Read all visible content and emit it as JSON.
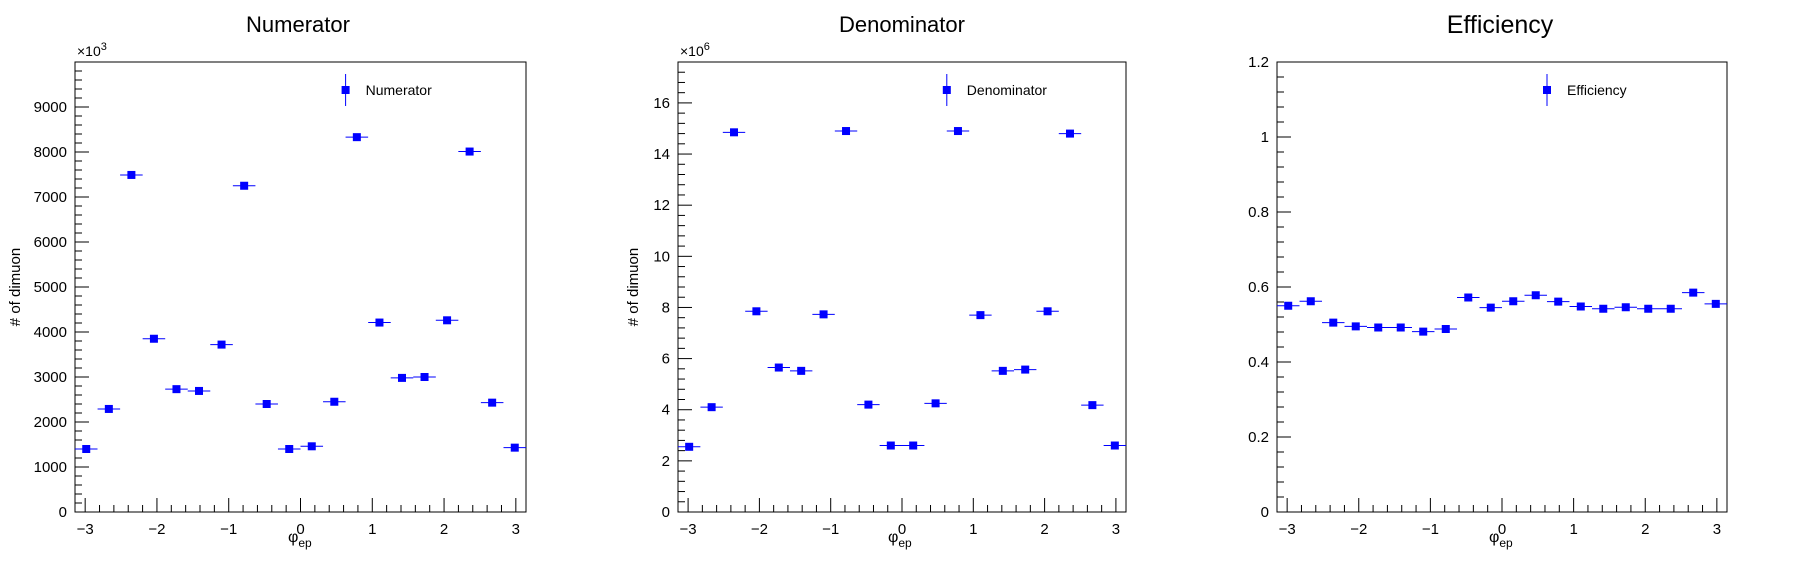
{
  "chart_data": [
    {
      "type": "scatter",
      "title": "Numerator",
      "ylabel": "# of dimuon",
      "xlabel_symbol": "φ",
      "xlabel_sub": "ep",
      "xlim": [
        -3.14159,
        3.14159
      ],
      "ylim": [
        0,
        10000
      ],
      "multiplier_base": "×10",
      "multiplier_exp": "3",
      "yticks": [
        0,
        1000,
        2000,
        3000,
        4000,
        5000,
        6000,
        7000,
        8000,
        9000
      ],
      "ytick_labels": [
        "0",
        "1000",
        "2000",
        "3000",
        "4000",
        "5000",
        "6000",
        "7000",
        "8000",
        "9000"
      ],
      "xticks": [
        -3,
        -2,
        -1,
        0,
        1,
        2,
        3
      ],
      "xtick_labels": [
        "−3",
        "−2",
        "−1",
        "0",
        "1",
        "2",
        "3"
      ],
      "legend": "Numerator",
      "legend_position": "top-right",
      "marker_color": "#0000ff",
      "x": [
        -2.985,
        -2.67,
        -2.356,
        -2.042,
        -1.728,
        -1.414,
        -1.1,
        -0.785,
        -0.471,
        -0.157,
        0.157,
        0.471,
        0.785,
        1.1,
        1.414,
        1.728,
        2.042,
        2.356,
        2.67,
        2.985
      ],
      "values": [
        1400,
        2290,
        7490,
        3850,
        2730,
        2690,
        3720,
        7250,
        2400,
        1400,
        1460,
        2450,
        8330,
        4210,
        2980,
        3000,
        4260,
        8010,
        2430,
        1430
      ]
    },
    {
      "type": "scatter",
      "title": "Denominator",
      "ylabel": "# of dimuon",
      "xlabel_symbol": "φ",
      "xlabel_sub": "ep",
      "xlim": [
        -3.14159,
        3.14159
      ],
      "ylim": [
        0,
        17600000
      ],
      "multiplier_base": "×10",
      "multiplier_exp": "6",
      "yticks": [
        0,
        2000000,
        4000000,
        6000000,
        8000000,
        10000000,
        12000000,
        14000000,
        16000000
      ],
      "ytick_labels": [
        "0",
        "2",
        "4",
        "6",
        "8",
        "10",
        "12",
        "14",
        "16"
      ],
      "xticks": [
        -3,
        -2,
        -1,
        0,
        1,
        2,
        3
      ],
      "xtick_labels": [
        "−3",
        "−2",
        "−1",
        "0",
        "1",
        "2",
        "3"
      ],
      "legend": "Denominator",
      "legend_position": "top-right",
      "marker_color": "#0000ff",
      "x": [
        -2.985,
        -2.67,
        -2.356,
        -2.042,
        -1.728,
        -1.414,
        -1.1,
        -0.785,
        -0.471,
        -0.157,
        0.157,
        0.471,
        0.785,
        1.1,
        1.414,
        1.728,
        2.042,
        2.356,
        2.67,
        2.985
      ],
      "values": [
        2550000,
        4100000,
        14850000,
        7850000,
        5650000,
        5520000,
        7730000,
        14900000,
        4200000,
        2600000,
        2600000,
        4250000,
        14900000,
        7700000,
        5520000,
        5570000,
        7850000,
        14800000,
        4180000,
        2600000
      ]
    },
    {
      "type": "scatter",
      "title": "Efficiency",
      "ylabel": "",
      "xlabel_symbol": "φ",
      "xlabel_sub": "ep",
      "xlim": [
        -3.14159,
        3.14159
      ],
      "ylim": [
        0,
        1.2
      ],
      "multiplier_base": "",
      "multiplier_exp": "",
      "yticks": [
        0,
        0.2,
        0.4,
        0.6,
        0.8,
        1.0,
        1.2
      ],
      "ytick_labels": [
        "0",
        "0.2",
        "0.4",
        "0.6",
        "0.8",
        "1",
        "1.2"
      ],
      "xticks": [
        -3,
        -2,
        -1,
        0,
        1,
        2,
        3
      ],
      "xtick_labels": [
        "−3",
        "−2",
        "−1",
        "0",
        "1",
        "2",
        "3"
      ],
      "legend": "Efficiency",
      "legend_position": "top-right",
      "marker_color": "#0000ff",
      "x": [
        -2.985,
        -2.67,
        -2.356,
        -2.042,
        -1.728,
        -1.414,
        -1.1,
        -0.785,
        -0.471,
        -0.157,
        0.157,
        0.471,
        0.785,
        1.1,
        1.414,
        1.728,
        2.042,
        2.356,
        2.67,
        2.985
      ],
      "values": [
        0.55,
        0.562,
        0.505,
        0.495,
        0.492,
        0.492,
        0.481,
        0.488,
        0.572,
        0.545,
        0.562,
        0.578,
        0.561,
        0.548,
        0.542,
        0.546,
        0.542,
        0.542,
        0.585,
        0.555
      ]
    }
  ]
}
